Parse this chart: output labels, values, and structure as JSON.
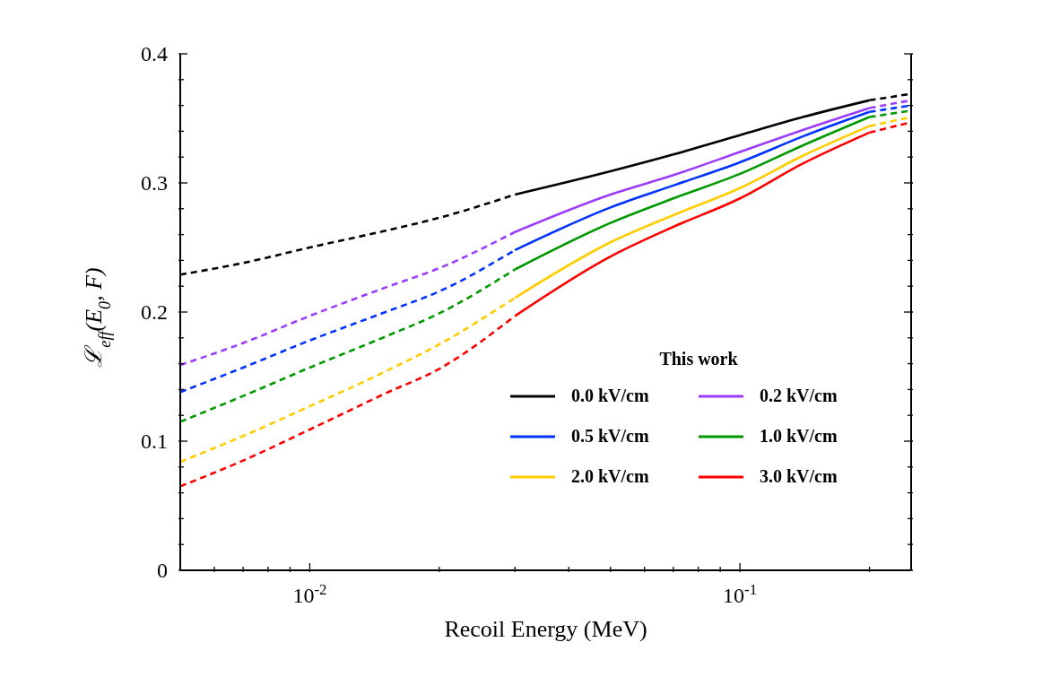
{
  "chart_data": {
    "type": "line",
    "xlabel": "Recoil Energy (MeV)",
    "ylabel": "ℒ$_{eff}$(E$_{0}$, F)",
    "legend_title": "This work",
    "legend": "bottom right",
    "log": "x",
    "xlim": [
      0.005,
      0.25
    ],
    "ylim": [
      0,
      0.4
    ],
    "xticks": [
      {
        "value": 0.006,
        "label": null
      },
      {
        "value": 0.007,
        "label": null
      },
      {
        "value": 0.008,
        "label": null
      },
      {
        "value": 0.009,
        "label": null
      },
      {
        "value": 0.01,
        "label": "10$^{-2}$"
      },
      {
        "value": 0.02,
        "label": null
      },
      {
        "value": 0.03,
        "label": null
      },
      {
        "value": 0.04,
        "label": null
      },
      {
        "value": 0.05,
        "label": null
      },
      {
        "value": 0.06,
        "label": null
      },
      {
        "value": 0.07,
        "label": null
      },
      {
        "value": 0.08,
        "label": null
      },
      {
        "value": 0.09,
        "label": null
      },
      {
        "value": 0.1,
        "label": "10$^{-1}$"
      },
      {
        "value": 0.2,
        "label": null
      }
    ],
    "yticks": [
      0,
      {
        "value": 0.02,
        "label": null
      },
      {
        "value": 0.04,
        "label": null
      },
      {
        "value": 0.06,
        "label": null
      },
      {
        "value": 0.08,
        "label": null
      },
      0.1,
      {
        "value": 0.12,
        "label": null
      },
      {
        "value": 0.14,
        "label": null
      },
      {
        "value": 0.16,
        "label": null
      },
      {
        "value": 0.18,
        "label": null
      },
      0.2,
      {
        "value": 0.22,
        "label": null
      },
      {
        "value": 0.24,
        "label": null
      },
      {
        "value": 0.26,
        "label": null
      },
      {
        "value": 0.28,
        "label": null
      },
      0.3,
      {
        "value": 0.32,
        "label": null
      },
      {
        "value": 0.34,
        "label": null
      },
      {
        "value": 0.36,
        "label": null
      },
      {
        "value": 0.38,
        "label": null
      },
      0.4
    ],
    "series": [
      {
        "name": "0.0 kV/cm",
        "color": "#000000",
        "line_style": "solid",
        "x": [
          0.03,
          0.05,
          0.07,
          0.1,
          0.14,
          0.2
        ],
        "values": [
          0.291,
          0.309,
          0.322,
          0.337,
          0.351,
          0.364
        ]
      },
      {
        "name": "0.2 kV/cm",
        "color": "#9b3cff",
        "line_style": "solid",
        "x": [
          0.03,
          0.05,
          0.07,
          0.1,
          0.14,
          0.2
        ],
        "values": [
          0.262,
          0.291,
          0.306,
          0.324,
          0.341,
          0.358
        ]
      },
      {
        "name": "0.5 kV/cm",
        "color": "#0033ff",
        "line_style": "solid",
        "x": [
          0.03,
          0.05,
          0.07,
          0.1,
          0.14,
          0.2
        ],
        "values": [
          0.248,
          0.281,
          0.298,
          0.316,
          0.336,
          0.355
        ]
      },
      {
        "name": "1.0 kV/cm",
        "color": "#009900",
        "line_style": "solid",
        "x": [
          0.03,
          0.05,
          0.07,
          0.1,
          0.14,
          0.2
        ],
        "values": [
          0.233,
          0.269,
          0.288,
          0.307,
          0.329,
          0.351
        ]
      },
      {
        "name": "2.0 kV/cm",
        "color": "#ffcc00",
        "line_style": "solid",
        "x": [
          0.03,
          0.05,
          0.07,
          0.1,
          0.14,
          0.2
        ],
        "values": [
          0.211,
          0.254,
          0.275,
          0.296,
          0.321,
          0.344
        ]
      },
      {
        "name": "3.0 kV/cm",
        "color": "#ff0000",
        "line_style": "solid",
        "x": [
          0.03,
          0.05,
          0.07,
          0.1,
          0.14,
          0.2
        ],
        "values": [
          0.197,
          0.243,
          0.266,
          0.288,
          0.315,
          0.339
        ]
      },
      {
        "color": "#000000",
        "line_style": "dashed",
        "x": [
          0.005,
          0.007,
          0.01,
          0.015,
          0.02,
          0.03
        ],
        "values": [
          0.229,
          0.238,
          0.25,
          0.263,
          0.273,
          0.291
        ]
      },
      {
        "color": "#9b3cff",
        "line_style": "dashed",
        "x": [
          0.005,
          0.007,
          0.01,
          0.015,
          0.02,
          0.03
        ],
        "values": [
          0.159,
          0.176,
          0.197,
          0.219,
          0.234,
          0.262
        ]
      },
      {
        "color": "#0033ff",
        "line_style": "dashed",
        "x": [
          0.005,
          0.007,
          0.01,
          0.015,
          0.02,
          0.03
        ],
        "values": [
          0.138,
          0.157,
          0.178,
          0.2,
          0.216,
          0.248
        ]
      },
      {
        "color": "#009900",
        "line_style": "dashed",
        "x": [
          0.005,
          0.007,
          0.01,
          0.015,
          0.02,
          0.03
        ],
        "values": [
          0.115,
          0.135,
          0.157,
          0.181,
          0.199,
          0.233
        ]
      },
      {
        "color": "#ffcc00",
        "line_style": "dashed",
        "x": [
          0.005,
          0.007,
          0.01,
          0.015,
          0.02,
          0.03
        ],
        "values": [
          0.084,
          0.104,
          0.127,
          0.154,
          0.175,
          0.211
        ]
      },
      {
        "color": "#ff0000",
        "line_style": "dashed",
        "x": [
          0.005,
          0.007,
          0.01,
          0.015,
          0.02,
          0.03
        ],
        "values": [
          0.065,
          0.085,
          0.109,
          0.137,
          0.156,
          0.197
        ]
      },
      {
        "color": "#000000",
        "line_style": "dashed",
        "x": [
          0.2,
          0.25
        ],
        "values": [
          0.364,
          0.369
        ]
      },
      {
        "color": "#9b3cff",
        "line_style": "dashed",
        "x": [
          0.2,
          0.25
        ],
        "values": [
          0.358,
          0.364
        ]
      },
      {
        "color": "#0033ff",
        "line_style": "dashed",
        "x": [
          0.2,
          0.25
        ],
        "values": [
          0.355,
          0.36
        ]
      },
      {
        "color": "#009900",
        "line_style": "dashed",
        "x": [
          0.2,
          0.25
        ],
        "values": [
          0.351,
          0.356
        ]
      },
      {
        "color": "#ffcc00",
        "line_style": "dashed",
        "x": [
          0.2,
          0.25
        ],
        "values": [
          0.344,
          0.351
        ]
      },
      {
        "color": "#ff0000",
        "line_style": "dashed",
        "x": [
          0.2,
          0.25
        ],
        "values": [
          0.339,
          0.347
        ]
      }
    ]
  }
}
